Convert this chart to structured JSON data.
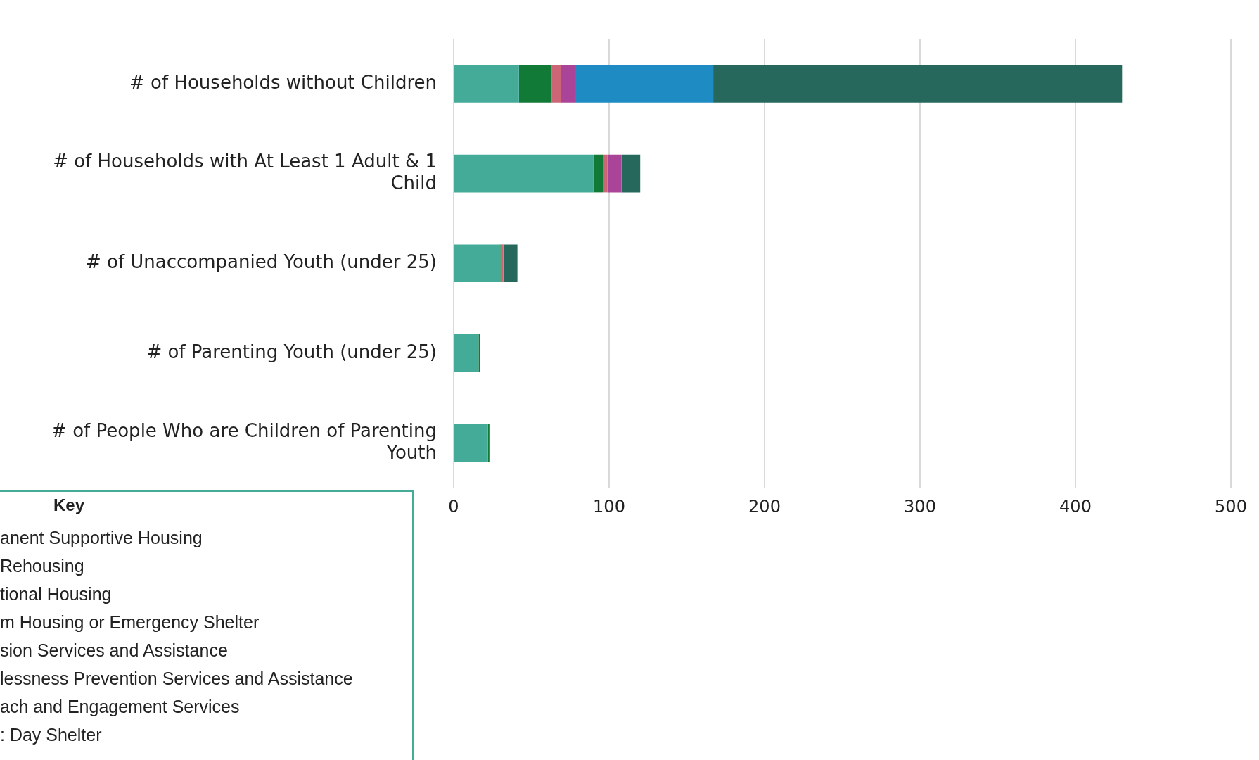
{
  "chart_data": {
    "type": "bar",
    "orientation": "horizontal",
    "stacked": true,
    "grid": "x",
    "categories": [
      "# of Households without Children",
      "# of Households with At Least 1 Adult & 1 Child",
      "# of Unaccompanied Youth (under 25)",
      "# of Parenting Youth (under 25)",
      "# of People Who are Children of Parenting Youth"
    ],
    "series": [
      {
        "color": "#45ab99",
        "values": [
          42,
          90,
          30,
          16,
          22
        ]
      },
      {
        "color": "#127a37",
        "values": [
          21,
          6,
          1,
          1,
          1
        ]
      },
      {
        "color": "#cc6677",
        "values": [
          6,
          3,
          1,
          0,
          0
        ]
      },
      {
        "color": "#aa4499",
        "values": [
          9,
          9,
          0,
          0,
          0
        ]
      },
      {
        "color": "#1e8bc3",
        "values": [
          89,
          0,
          0,
          0,
          0
        ]
      },
      {
        "color": "#27685c",
        "values": [
          263,
          12,
          9,
          0,
          0
        ]
      }
    ],
    "xlim": [
      0,
      500
    ],
    "xticks": [
      0,
      100,
      200,
      300,
      400,
      500
    ],
    "annotations": [
      "Key",
      "anent Supportive Housing",
      "Rehousing",
      "tional Housing",
      "m Housing or Emergency Shelter",
      "sion Services and Assistance",
      "lessness Prevention Services and Assistance",
      "ach and Engagement Services",
      ": Day Shelter"
    ]
  }
}
